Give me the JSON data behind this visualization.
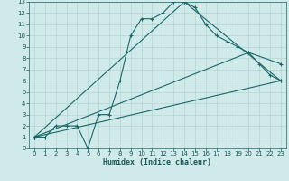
{
  "xlabel": "Humidex (Indice chaleur)",
  "bg_color": "#d0eaea",
  "grid_color": "#b8d8d8",
  "line_color": "#1a6868",
  "xlim": [
    -0.5,
    23.5
  ],
  "ylim": [
    0,
    13
  ],
  "xticks": [
    0,
    1,
    2,
    3,
    4,
    5,
    6,
    7,
    8,
    9,
    10,
    11,
    12,
    13,
    14,
    15,
    16,
    17,
    18,
    19,
    20,
    21,
    22,
    23
  ],
  "yticks": [
    0,
    1,
    2,
    3,
    4,
    5,
    6,
    7,
    8,
    9,
    10,
    11,
    12,
    13
  ],
  "line1_x": [
    0,
    1,
    2,
    3,
    4,
    5,
    6,
    7,
    8,
    9,
    10,
    11,
    12,
    13,
    14,
    15,
    16,
    17,
    18,
    19,
    20,
    21,
    22,
    23
  ],
  "line1_y": [
    1,
    1,
    2,
    2,
    2,
    0,
    3,
    3,
    6,
    10,
    11.5,
    11.5,
    12,
    13,
    13,
    12.5,
    11,
    10,
    9.5,
    9,
    8.5,
    7.5,
    6.5,
    6
  ],
  "line2_x": [
    0,
    14,
    23
  ],
  "line2_y": [
    1,
    13,
    6
  ],
  "line3_x": [
    0,
    20,
    23
  ],
  "line3_y": [
    1,
    8.5,
    7.5
  ],
  "line4_x": [
    0,
    23
  ],
  "line4_y": [
    1,
    6
  ]
}
